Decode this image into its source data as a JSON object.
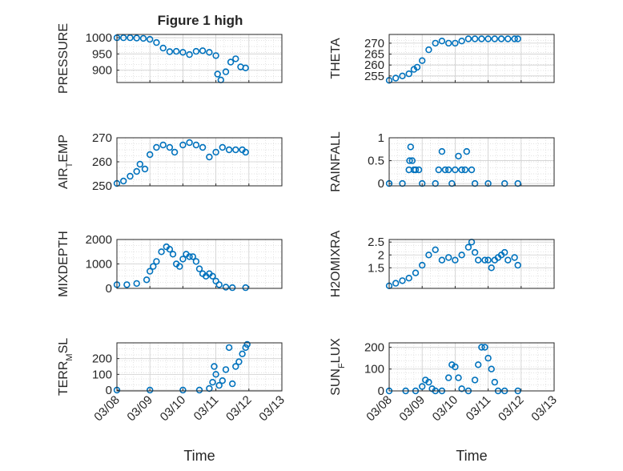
{
  "figure": {
    "title": "Figure 1 high",
    "x_label": "Time",
    "x_ticks": [
      "03/08",
      "03/09",
      "03/10",
      "03/11",
      "03/12",
      "03/13"
    ]
  },
  "colors": {
    "marker": "#0072BD",
    "axis": "#262626",
    "grid": "#d9d9d9"
  },
  "chart_data": [
    {
      "type": "scatter",
      "ylabel": "PRESSURE",
      "xlim": [
        0,
        5
      ],
      "ylim": [
        862,
        1010
      ],
      "yticks": [
        900,
        950,
        1000
      ],
      "grid": true,
      "points": [
        [
          0,
          1000
        ],
        [
          0.2,
          1000
        ],
        [
          0.4,
          1000
        ],
        [
          0.6,
          999
        ],
        [
          0.8,
          998
        ],
        [
          1.0,
          995
        ],
        [
          1.2,
          985
        ],
        [
          1.4,
          968
        ],
        [
          1.6,
          957
        ],
        [
          1.8,
          958
        ],
        [
          2.0,
          955
        ],
        [
          2.2,
          948
        ],
        [
          2.4,
          958
        ],
        [
          2.6,
          960
        ],
        [
          2.8,
          955
        ],
        [
          3.0,
          945
        ],
        [
          3.05,
          888
        ],
        [
          3.15,
          870
        ],
        [
          3.3,
          895
        ],
        [
          3.45,
          925
        ],
        [
          3.6,
          935
        ],
        [
          3.75,
          910
        ],
        [
          3.9,
          907
        ]
      ]
    },
    {
      "type": "scatter",
      "ylabel": "THETA",
      "xlim": [
        0,
        5
      ],
      "ylim": [
        252,
        274
      ],
      "yticks": [
        255,
        260,
        265,
        270
      ],
      "grid": true,
      "points": [
        [
          0,
          253
        ],
        [
          0.2,
          254
        ],
        [
          0.4,
          255
        ],
        [
          0.6,
          256
        ],
        [
          0.75,
          258
        ],
        [
          0.85,
          259
        ],
        [
          1.0,
          262
        ],
        [
          1.2,
          267
        ],
        [
          1.4,
          270
        ],
        [
          1.6,
          271
        ],
        [
          1.8,
          270
        ],
        [
          2.0,
          270
        ],
        [
          2.2,
          271
        ],
        [
          2.4,
          272
        ],
        [
          2.6,
          272
        ],
        [
          2.8,
          272
        ],
        [
          3.0,
          272
        ],
        [
          3.2,
          272
        ],
        [
          3.4,
          272
        ],
        [
          3.6,
          272
        ],
        [
          3.8,
          272
        ],
        [
          3.9,
          272
        ]
      ]
    },
    {
      "type": "scatter",
      "ylabel": "AIR_TEMP",
      "xlim": [
        0,
        5
      ],
      "ylim": [
        250,
        270
      ],
      "yticks": [
        250,
        260,
        270
      ],
      "grid": true,
      "points": [
        [
          0,
          251
        ],
        [
          0.2,
          252
        ],
        [
          0.4,
          254
        ],
        [
          0.6,
          256
        ],
        [
          0.7,
          259
        ],
        [
          0.85,
          257
        ],
        [
          1.0,
          263
        ],
        [
          1.2,
          266
        ],
        [
          1.4,
          267
        ],
        [
          1.6,
          266
        ],
        [
          1.75,
          264
        ],
        [
          2.0,
          267
        ],
        [
          2.2,
          268
        ],
        [
          2.4,
          267
        ],
        [
          2.6,
          266
        ],
        [
          2.8,
          262
        ],
        [
          3.0,
          264
        ],
        [
          3.2,
          266
        ],
        [
          3.4,
          265
        ],
        [
          3.6,
          265
        ],
        [
          3.8,
          265
        ],
        [
          3.9,
          264
        ]
      ]
    },
    {
      "type": "scatter",
      "ylabel": "RAINFALL",
      "xlim": [
        0,
        5
      ],
      "ylim": [
        -0.05,
        1
      ],
      "yticks": [
        0,
        0.5,
        1
      ],
      "grid": true,
      "points": [
        [
          0,
          0
        ],
        [
          0.4,
          0
        ],
        [
          0.6,
          0.3
        ],
        [
          0.62,
          0.5
        ],
        [
          0.65,
          0.8
        ],
        [
          0.7,
          0.5
        ],
        [
          0.75,
          0.3
        ],
        [
          0.8,
          0.3
        ],
        [
          0.9,
          0.3
        ],
        [
          1.0,
          0
        ],
        [
          1.4,
          0
        ],
        [
          1.5,
          0.3
        ],
        [
          1.6,
          0.7
        ],
        [
          1.7,
          0.3
        ],
        [
          1.8,
          0.3
        ],
        [
          1.9,
          0
        ],
        [
          2.0,
          0.3
        ],
        [
          2.1,
          0.6
        ],
        [
          2.2,
          0.3
        ],
        [
          2.3,
          0.3
        ],
        [
          2.35,
          0.7
        ],
        [
          2.5,
          0.3
        ],
        [
          2.6,
          0
        ],
        [
          3.0,
          0
        ],
        [
          3.5,
          0
        ],
        [
          3.9,
          0
        ]
      ]
    },
    {
      "type": "scatter",
      "ylabel": "MIXDEPTH",
      "xlim": [
        0,
        5
      ],
      "ylim": [
        0,
        2000
      ],
      "yticks": [
        0,
        1000,
        2000
      ],
      "grid": true,
      "points": [
        [
          0,
          150
        ],
        [
          0.3,
          150
        ],
        [
          0.6,
          200
        ],
        [
          0.9,
          350
        ],
        [
          1.0,
          700
        ],
        [
          1.1,
          900
        ],
        [
          1.2,
          1100
        ],
        [
          1.35,
          1500
        ],
        [
          1.5,
          1700
        ],
        [
          1.6,
          1600
        ],
        [
          1.7,
          1400
        ],
        [
          1.8,
          1000
        ],
        [
          1.9,
          900
        ],
        [
          2.0,
          1200
        ],
        [
          2.1,
          1400
        ],
        [
          2.2,
          1300
        ],
        [
          2.3,
          1300
        ],
        [
          2.4,
          1100
        ],
        [
          2.5,
          800
        ],
        [
          2.6,
          600
        ],
        [
          2.7,
          500
        ],
        [
          2.8,
          600
        ],
        [
          2.9,
          500
        ],
        [
          3.0,
          300
        ],
        [
          3.1,
          150
        ],
        [
          3.3,
          50
        ],
        [
          3.5,
          30
        ],
        [
          3.9,
          30
        ]
      ]
    },
    {
      "type": "scatter",
      "ylabel": "H2OMIXRA",
      "xlim": [
        0,
        5
      ],
      "ylim": [
        0.7,
        2.6
      ],
      "yticks": [
        1.5,
        2,
        2.5
      ],
      "grid": true,
      "points": [
        [
          0,
          0.8
        ],
        [
          0.2,
          0.9
        ],
        [
          0.4,
          1.0
        ],
        [
          0.6,
          1.1
        ],
        [
          0.8,
          1.3
        ],
        [
          1.0,
          1.6
        ],
        [
          1.2,
          2.0
        ],
        [
          1.4,
          2.2
        ],
        [
          1.6,
          1.8
        ],
        [
          1.8,
          1.9
        ],
        [
          2.0,
          1.8
        ],
        [
          2.2,
          2.0
        ],
        [
          2.4,
          2.3
        ],
        [
          2.5,
          2.5
        ],
        [
          2.6,
          2.1
        ],
        [
          2.7,
          1.8
        ],
        [
          2.9,
          1.8
        ],
        [
          3.0,
          1.8
        ],
        [
          3.1,
          1.5
        ],
        [
          3.2,
          1.8
        ],
        [
          3.3,
          1.9
        ],
        [
          3.4,
          2.0
        ],
        [
          3.5,
          2.1
        ],
        [
          3.6,
          1.8
        ],
        [
          3.8,
          1.9
        ],
        [
          3.9,
          1.6
        ]
      ]
    },
    {
      "type": "scatter",
      "ylabel": "TERR_MSL",
      "xlim": [
        0,
        5
      ],
      "ylim": [
        -5,
        300
      ],
      "yticks": [
        0,
        100,
        200
      ],
      "grid": true,
      "points": [
        [
          0,
          0
        ],
        [
          1.0,
          0
        ],
        [
          2.0,
          0
        ],
        [
          2.5,
          0
        ],
        [
          2.8,
          10
        ],
        [
          2.9,
          50
        ],
        [
          2.95,
          150
        ],
        [
          3.0,
          100
        ],
        [
          3.1,
          30
        ],
        [
          3.2,
          60
        ],
        [
          3.3,
          130
        ],
        [
          3.4,
          270
        ],
        [
          3.5,
          40
        ],
        [
          3.6,
          150
        ],
        [
          3.7,
          180
        ],
        [
          3.8,
          230
        ],
        [
          3.9,
          270
        ],
        [
          3.95,
          290
        ]
      ]
    },
    {
      "type": "scatter",
      "ylabel": "SUN_FLUX",
      "xlim": [
        0,
        5
      ],
      "ylim": [
        0,
        220
      ],
      "yticks": [
        0,
        100,
        200
      ],
      "grid": true,
      "points": [
        [
          0,
          0
        ],
        [
          0.5,
          0
        ],
        [
          0.8,
          0
        ],
        [
          1.0,
          20
        ],
        [
          1.1,
          50
        ],
        [
          1.2,
          40
        ],
        [
          1.3,
          10
        ],
        [
          1.4,
          0
        ],
        [
          1.6,
          0
        ],
        [
          1.8,
          60
        ],
        [
          1.9,
          120
        ],
        [
          2.0,
          110
        ],
        [
          2.1,
          60
        ],
        [
          2.2,
          10
        ],
        [
          2.4,
          0
        ],
        [
          2.6,
          50
        ],
        [
          2.7,
          120
        ],
        [
          2.8,
          200
        ],
        [
          2.9,
          200
        ],
        [
          3.0,
          150
        ],
        [
          3.1,
          100
        ],
        [
          3.2,
          40
        ],
        [
          3.3,
          0
        ],
        [
          3.5,
          0
        ],
        [
          3.9,
          0
        ]
      ]
    }
  ]
}
